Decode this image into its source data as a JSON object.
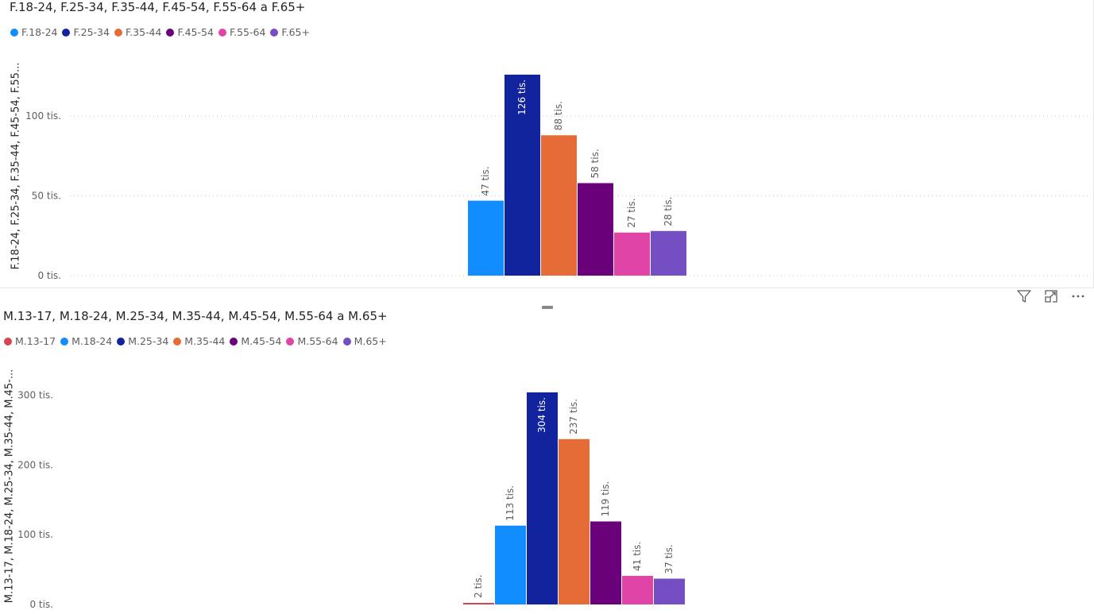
{
  "toolbar": {
    "filter_icon": "filter-icon",
    "focus_icon": "focus-mode-icon",
    "more_icon": "more-options-icon"
  },
  "chart_data": [
    {
      "type": "bar",
      "title": "F.18-24, F.25-34, F.35-44, F.45-54, F.55-64 a F.65+",
      "ylabel": "F.18-24, F.25-34, F.35-44, F.45-54, F.55...",
      "xlabel": "",
      "ylim": [
        0,
        126000
      ],
      "yticks": [
        {
          "value": 0,
          "label": "0 tis."
        },
        {
          "value": 50000,
          "label": "50 tis."
        },
        {
          "value": 100000,
          "label": "100 tis."
        }
      ],
      "grid": true,
      "legend_position": "top-left",
      "series": [
        {
          "name": "F.18-24",
          "value": 47000,
          "label": "47 tis.",
          "color": "#118DFF"
        },
        {
          "name": "F.25-34",
          "value": 126000,
          "label": "126 tis.",
          "color": "#12239E"
        },
        {
          "name": "F.35-44",
          "value": 88000,
          "label": "88 tis.",
          "color": "#E66C37"
        },
        {
          "name": "F.45-54",
          "value": 58000,
          "label": "58 tis.",
          "color": "#6B007B"
        },
        {
          "name": "F.55-64",
          "value": 27000,
          "label": "27 tis.",
          "color": "#E044A7"
        },
        {
          "name": "F.65+",
          "value": 28000,
          "label": "28 tis.",
          "color": "#744EC2"
        }
      ]
    },
    {
      "type": "bar",
      "title": "M.13-17, M.18-24, M.25-34, M.35-44, M.45-54, M.55-64 a M.65+",
      "ylabel": "M.13-17, M.18-24, M.25-34, M.35-44, M.45-...",
      "xlabel": "",
      "ylim": [
        0,
        304000
      ],
      "yticks": [
        {
          "value": 0,
          "label": "0 tis."
        },
        {
          "value": 100000,
          "label": "100 tis."
        },
        {
          "value": 200000,
          "label": "200 tis."
        },
        {
          "value": 300000,
          "label": "300 tis."
        }
      ],
      "grid": false,
      "legend_position": "top-left",
      "series": [
        {
          "name": "M.13-17",
          "value": 2000,
          "label": "2 tis.",
          "color": "#D64550"
        },
        {
          "name": "M.18-24",
          "value": 113000,
          "label": "113 tis.",
          "color": "#118DFF"
        },
        {
          "name": "M.25-34",
          "value": 304000,
          "label": "304 tis.",
          "color": "#12239E"
        },
        {
          "name": "M.35-44",
          "value": 237000,
          "label": "237 tis.",
          "color": "#E66C37"
        },
        {
          "name": "M.45-54",
          "value": 119000,
          "label": "119 tis.",
          "color": "#6B007B"
        },
        {
          "name": "M.55-64",
          "value": 41000,
          "label": "41 tis.",
          "color": "#E044A7"
        },
        {
          "name": "M.65+",
          "value": 37000,
          "label": "37 tis.",
          "color": "#744EC2"
        }
      ]
    }
  ]
}
